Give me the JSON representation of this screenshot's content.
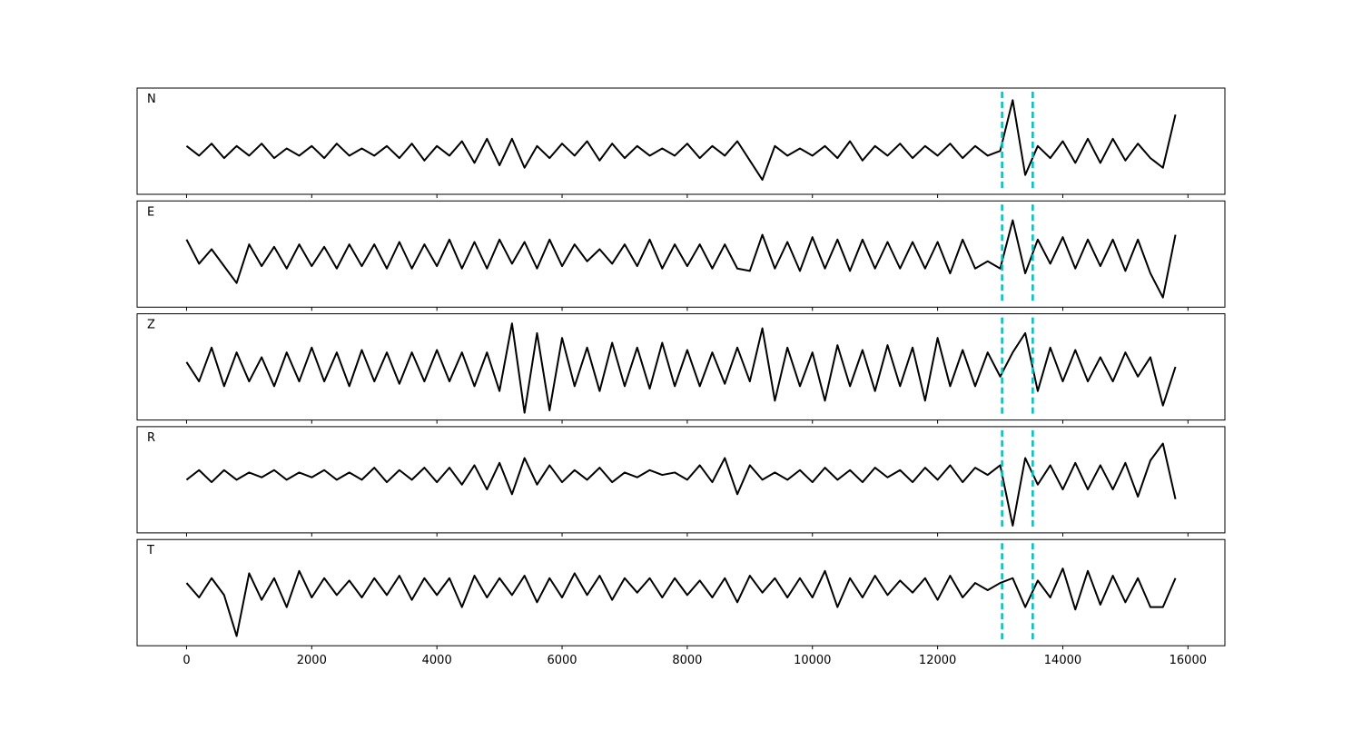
{
  "chart_data": {
    "type": "line",
    "x": [
      0,
      200,
      400,
      600,
      800,
      1000,
      1200,
      1400,
      1600,
      1800,
      2000,
      2200,
      2400,
      2600,
      2800,
      3000,
      3200,
      3400,
      3600,
      3800,
      4000,
      4200,
      4400,
      4600,
      4800,
      5000,
      5200,
      5400,
      5600,
      5800,
      6000,
      6200,
      6400,
      6600,
      6800,
      7000,
      7200,
      7400,
      7600,
      7800,
      8000,
      8200,
      8400,
      8600,
      8800,
      9000,
      9200,
      9400,
      9600,
      9800,
      10000,
      10200,
      10400,
      10600,
      10800,
      11000,
      11200,
      11400,
      11600,
      11800,
      12000,
      12200,
      12400,
      12600,
      12800,
      13000,
      13200,
      13400,
      13600,
      13800,
      14000,
      14200,
      14400,
      14600,
      14800,
      15000,
      15200,
      15400,
      15600,
      15800
    ],
    "xlim": [
      -790,
      16590
    ],
    "xticks": [
      0,
      2000,
      4000,
      6000,
      8000,
      10000,
      12000,
      14000,
      16000
    ],
    "ylim": [
      -1.1,
      1.1
    ],
    "color": "#000000",
    "vlines": [
      13030,
      13520
    ],
    "vline_color": "#00bfbf",
    "series": [
      {
        "name": "N",
        "values": [
          -0.1,
          -0.3,
          -0.05,
          -0.35,
          -0.1,
          -0.3,
          -0.05,
          -0.35,
          -0.15,
          -0.3,
          -0.1,
          -0.35,
          -0.05,
          -0.3,
          -0.15,
          -0.3,
          -0.1,
          -0.35,
          -0.05,
          -0.4,
          -0.1,
          -0.3,
          0.0,
          -0.45,
          0.05,
          -0.5,
          0.05,
          -0.55,
          -0.1,
          -0.35,
          -0.05,
          -0.3,
          0.0,
          -0.4,
          -0.05,
          -0.35,
          -0.1,
          -0.3,
          -0.15,
          -0.3,
          -0.05,
          -0.35,
          -0.1,
          -0.3,
          0.0,
          -0.4,
          -0.8,
          -0.1,
          -0.3,
          -0.15,
          -0.3,
          -0.1,
          -0.35,
          0.0,
          -0.4,
          -0.1,
          -0.3,
          -0.05,
          -0.35,
          -0.1,
          -0.3,
          -0.05,
          -0.35,
          -0.1,
          -0.3,
          -0.2,
          0.85,
          -0.7,
          -0.1,
          -0.35,
          0.0,
          -0.45,
          0.05,
          -0.45,
          0.05,
          -0.4,
          -0.05,
          -0.35,
          -0.55,
          0.55
        ]
      },
      {
        "name": "E",
        "values": [
          0.3,
          -0.2,
          0.1,
          -0.25,
          -0.6,
          0.2,
          -0.25,
          0.15,
          -0.3,
          0.2,
          -0.25,
          0.15,
          -0.3,
          0.2,
          -0.25,
          0.2,
          -0.3,
          0.25,
          -0.3,
          0.2,
          -0.25,
          0.3,
          -0.3,
          0.25,
          -0.3,
          0.3,
          -0.2,
          0.25,
          -0.3,
          0.3,
          -0.25,
          0.2,
          -0.15,
          0.1,
          -0.2,
          0.2,
          -0.25,
          0.3,
          -0.3,
          0.2,
          -0.25,
          0.2,
          -0.3,
          0.2,
          -0.3,
          -0.35,
          0.4,
          -0.3,
          0.25,
          -0.35,
          0.35,
          -0.3,
          0.3,
          -0.35,
          0.3,
          -0.3,
          0.25,
          -0.3,
          0.25,
          -0.3,
          0.25,
          -0.4,
          0.3,
          -0.3,
          -0.15,
          -0.3,
          0.7,
          -0.4,
          0.3,
          -0.2,
          0.35,
          -0.3,
          0.3,
          -0.25,
          0.3,
          -0.35,
          0.3,
          -0.4,
          -0.9,
          0.4
        ]
      },
      {
        "name": "Z",
        "values": [
          0.1,
          -0.3,
          0.4,
          -0.4,
          0.3,
          -0.3,
          0.2,
          -0.4,
          0.3,
          -0.3,
          0.4,
          -0.3,
          0.3,
          -0.4,
          0.35,
          -0.3,
          0.3,
          -0.35,
          0.3,
          -0.3,
          0.35,
          -0.3,
          0.3,
          -0.4,
          0.3,
          -0.5,
          0.9,
          -0.95,
          0.7,
          -0.9,
          0.6,
          -0.4,
          0.4,
          -0.5,
          0.5,
          -0.4,
          0.4,
          -0.45,
          0.5,
          -0.4,
          0.35,
          -0.4,
          0.3,
          -0.35,
          0.4,
          -0.3,
          0.8,
          -0.7,
          0.4,
          -0.4,
          0.3,
          -0.7,
          0.45,
          -0.4,
          0.35,
          -0.5,
          0.45,
          -0.4,
          0.4,
          -0.7,
          0.6,
          -0.4,
          0.35,
          -0.4,
          0.3,
          -0.2,
          0.3,
          0.7,
          -0.5,
          0.4,
          -0.3,
          0.35,
          -0.3,
          0.2,
          -0.3,
          0.3,
          -0.2,
          0.2,
          -0.8,
          0.0
        ]
      },
      {
        "name": "R",
        "values": [
          0.0,
          0.2,
          -0.05,
          0.2,
          0.0,
          0.15,
          0.05,
          0.2,
          0.0,
          0.15,
          0.05,
          0.2,
          0.0,
          0.15,
          0.0,
          0.25,
          -0.05,
          0.2,
          0.0,
          0.25,
          -0.05,
          0.25,
          -0.1,
          0.3,
          -0.2,
          0.35,
          -0.3,
          0.45,
          -0.1,
          0.3,
          -0.05,
          0.2,
          0.0,
          0.25,
          -0.05,
          0.15,
          0.05,
          0.2,
          0.1,
          0.15,
          0.0,
          0.3,
          -0.05,
          0.45,
          -0.3,
          0.3,
          0.0,
          0.15,
          0.0,
          0.2,
          -0.05,
          0.25,
          0.0,
          0.2,
          -0.05,
          0.25,
          0.05,
          0.2,
          -0.05,
          0.25,
          0.0,
          0.3,
          -0.05,
          0.25,
          0.1,
          0.3,
          -0.95,
          0.45,
          -0.1,
          0.3,
          -0.2,
          0.35,
          -0.2,
          0.3,
          -0.2,
          0.35,
          -0.35,
          0.4,
          0.75,
          -0.4
        ]
      },
      {
        "name": "T",
        "values": [
          0.2,
          -0.1,
          0.3,
          -0.05,
          -0.9,
          0.4,
          -0.15,
          0.3,
          -0.3,
          0.45,
          -0.1,
          0.3,
          -0.05,
          0.25,
          -0.1,
          0.3,
          -0.05,
          0.35,
          -0.15,
          0.3,
          -0.05,
          0.3,
          -0.3,
          0.35,
          -0.1,
          0.3,
          -0.05,
          0.35,
          -0.2,
          0.3,
          -0.1,
          0.4,
          -0.05,
          0.35,
          -0.15,
          0.3,
          0.0,
          0.3,
          -0.1,
          0.3,
          -0.05,
          0.25,
          -0.1,
          0.3,
          -0.2,
          0.35,
          0.0,
          0.3,
          -0.1,
          0.3,
          -0.1,
          0.45,
          -0.3,
          0.3,
          -0.1,
          0.35,
          -0.05,
          0.25,
          0.0,
          0.3,
          -0.15,
          0.35,
          -0.1,
          0.2,
          0.05,
          0.2,
          0.3,
          -0.3,
          0.25,
          -0.1,
          0.5,
          -0.35,
          0.45,
          -0.25,
          0.35,
          -0.2,
          0.3,
          -0.3,
          -0.3,
          0.3
        ]
      }
    ]
  }
}
